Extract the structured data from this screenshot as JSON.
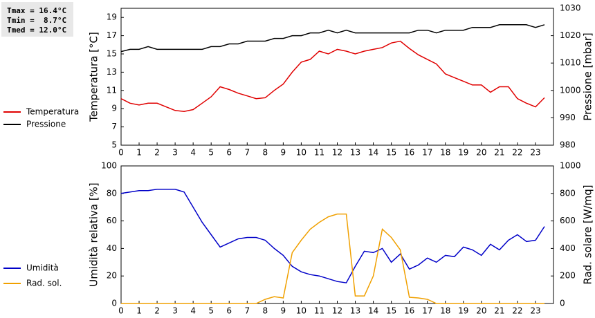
{
  "chart_data": [
    {
      "type": "line",
      "ylabel": "Temperatura [°C]",
      "y2label": "Pressione [mbar]",
      "stats": [
        "Tmax = 16.4°C",
        "Tmin =  8.7°C",
        "Tmed = 12.0°C"
      ],
      "x": [
        0,
        0.5,
        1,
        1.5,
        2,
        2.5,
        3,
        3.5,
        4,
        4.5,
        5,
        5.5,
        6,
        6.5,
        7,
        7.5,
        8,
        8.5,
        9,
        9.5,
        10,
        10.5,
        11,
        11.5,
        12,
        12.5,
        13,
        13.5,
        14,
        14.5,
        15,
        15.5,
        16,
        16.5,
        17,
        17.5,
        18,
        18.5,
        19,
        19.5,
        20,
        20.5,
        21,
        21.5,
        22,
        22.5,
        23,
        23.5
      ],
      "xlim": [
        0,
        24
      ],
      "xticks": [
        0,
        1,
        2,
        3,
        4,
        5,
        6,
        7,
        8,
        9,
        10,
        11,
        12,
        13,
        14,
        15,
        16,
        17,
        18,
        19,
        20,
        21,
        22,
        23
      ],
      "ylim": [
        5,
        20
      ],
      "yticks": [
        5,
        7,
        9,
        11,
        13,
        15,
        17,
        19
      ],
      "y2lim": [
        980,
        1030
      ],
      "y2ticks": [
        980,
        990,
        1000,
        1010,
        1020,
        1030
      ],
      "series": [
        {
          "name": "Temperatura",
          "color": "#e00000",
          "values": [
            10.1,
            9.6,
            9.4,
            9.6,
            9.6,
            9.2,
            8.8,
            8.7,
            8.9,
            9.6,
            10.3,
            11.4,
            11.1,
            10.7,
            10.4,
            10.1,
            10.2,
            11.0,
            11.7,
            13.0,
            14.1,
            14.4,
            15.3,
            15.0,
            15.5,
            15.3,
            15.0,
            15.3,
            15.5,
            15.7,
            16.2,
            16.4,
            15.6,
            14.9,
            14.4,
            13.9,
            12.8,
            12.4,
            12.0,
            11.6,
            11.6,
            10.8,
            11.4,
            11.4,
            10.1,
            9.6,
            9.2,
            10.2
          ]
        },
        {
          "name": "Pressione",
          "color": "#000000",
          "axis": "y2",
          "values": [
            1014.2,
            1015,
            1015,
            1016,
            1015,
            1015,
            1015,
            1015,
            1015,
            1015,
            1016,
            1016,
            1017,
            1017,
            1018,
            1018,
            1018,
            1019,
            1019,
            1020,
            1020,
            1021,
            1021,
            1022,
            1021,
            1022,
            1021,
            1021,
            1021,
            1021,
            1021,
            1021,
            1021,
            1022,
            1022,
            1021,
            1022,
            1022,
            1022,
            1023,
            1023,
            1023,
            1024,
            1024,
            1024,
            1024,
            1023,
            1024
          ]
        }
      ]
    },
    {
      "type": "line",
      "ylabel": "Umidità relativa [%]",
      "y2label": "Rad. solare [W/mq]",
      "x": [
        0,
        0.5,
        1,
        1.5,
        2,
        2.5,
        3,
        3.5,
        4,
        4.5,
        5,
        5.5,
        6,
        6.5,
        7,
        7.5,
        8,
        8.5,
        9,
        9.5,
        10,
        10.5,
        11,
        11.5,
        12,
        12.5,
        13,
        13.5,
        14,
        14.5,
        15,
        15.5,
        16,
        16.5,
        17,
        17.5,
        18,
        18.5,
        19,
        19.5,
        20,
        20.5,
        21,
        21.5,
        22,
        22.5,
        23,
        23.5
      ],
      "xlim": [
        0,
        24
      ],
      "xticks": [
        0,
        1,
        2,
        3,
        4,
        5,
        6,
        7,
        8,
        9,
        10,
        11,
        12,
        13,
        14,
        15,
        16,
        17,
        18,
        19,
        20,
        21,
        22,
        23
      ],
      "ylim": [
        0,
        100
      ],
      "yticks": [
        0,
        20,
        40,
        60,
        80,
        100
      ],
      "y2lim": [
        0,
        1000
      ],
      "y2ticks": [
        0,
        200,
        400,
        600,
        800,
        1000
      ],
      "series": [
        {
          "name": "Umidità",
          "color": "#0000c8",
          "values": [
            80,
            81,
            82,
            82,
            83,
            83,
            83,
            81,
            70,
            59,
            50,
            41,
            44,
            47,
            48,
            48,
            46,
            40,
            35,
            27,
            23,
            21,
            20,
            18,
            16,
            15,
            27,
            38,
            37,
            40,
            30,
            36,
            25,
            28,
            33,
            30,
            35,
            34,
            41,
            39,
            35,
            43,
            39,
            46,
            50,
            45,
            46,
            56
          ]
        },
        {
          "name": "Rad. sol.",
          "color": "#f0a000",
          "axis": "y2",
          "values": [
            0,
            0,
            0,
            0,
            0,
            0,
            0,
            0,
            0,
            0,
            0,
            0,
            0,
            0,
            0,
            0,
            30,
            50,
            40,
            370,
            460,
            540,
            590,
            630,
            650,
            650,
            55,
            55,
            200,
            540,
            480,
            390,
            45,
            40,
            30,
            0,
            0,
            0,
            0,
            0,
            0,
            0,
            0,
            0,
            0,
            0,
            0,
            0
          ]
        }
      ]
    }
  ]
}
